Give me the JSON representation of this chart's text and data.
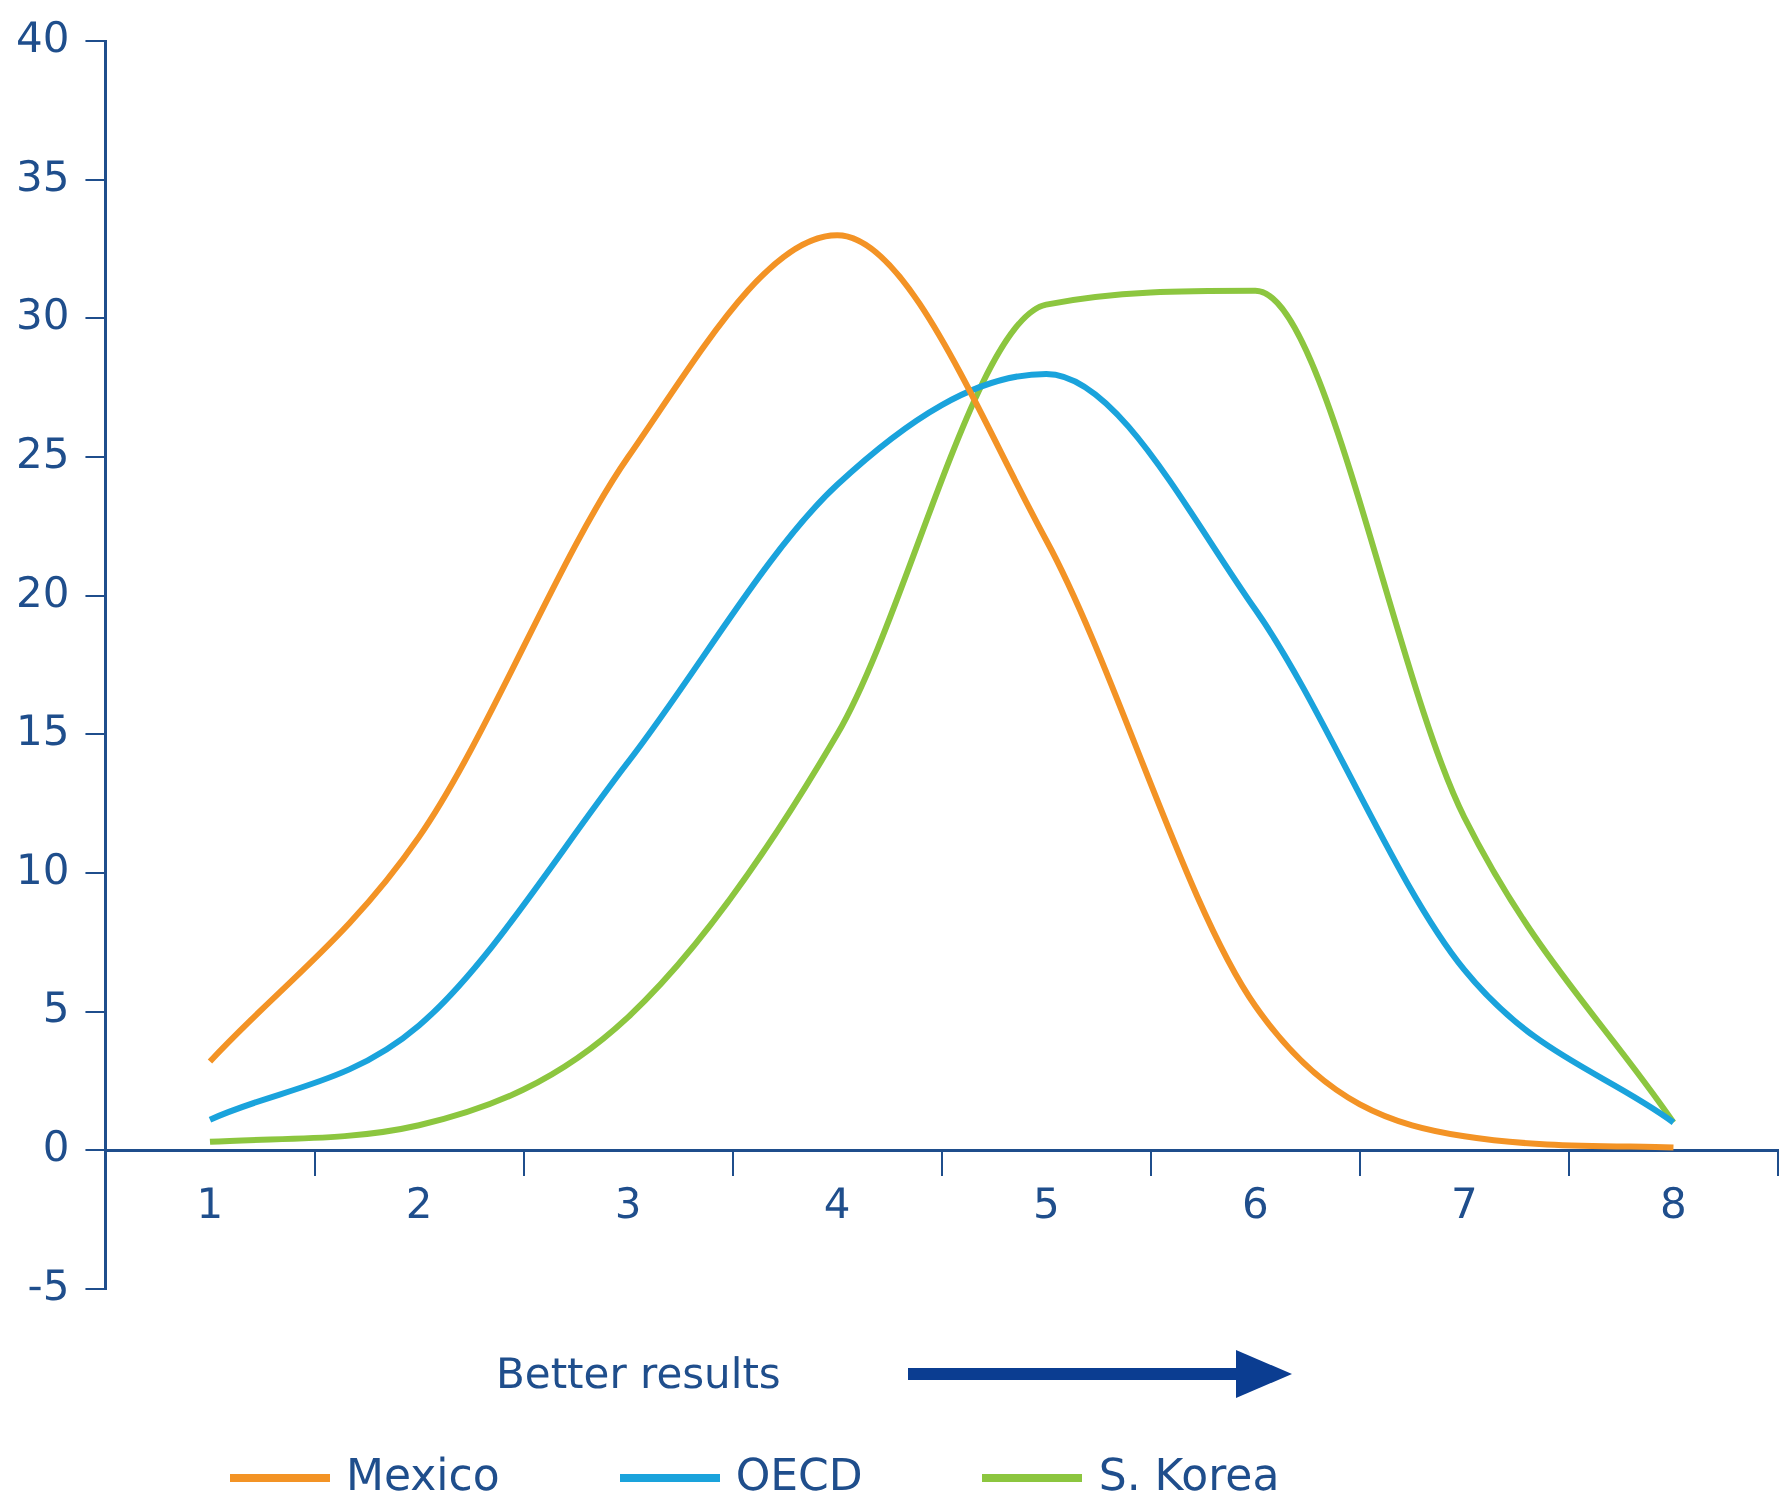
{
  "chart_data": {
    "type": "line",
    "categories": [
      "1",
      "2",
      "3",
      "4",
      "5",
      "6",
      "7",
      "8"
    ],
    "series": [
      {
        "name": "Mexico",
        "color": "#f39325",
        "values": [
          3.2,
          11.3,
          25,
          33,
          22,
          5.2,
          0.5,
          0.1
        ]
      },
      {
        "name": "OECD",
        "color": "#1aa3dc",
        "values": [
          1.1,
          4.5,
          14,
          24,
          28,
          19.5,
          6.5,
          1
        ]
      },
      {
        "name": "S. Korea",
        "color": "#8cc63f",
        "values": [
          0.3,
          0.9,
          4.8,
          15,
          30.5,
          31,
          12,
          1
        ]
      }
    ],
    "ylim": [
      -5,
      40
    ],
    "yticks": [
      -5,
      0,
      5,
      10,
      15,
      20,
      25,
      30,
      35,
      40
    ],
    "grid": false,
    "legend": "bottom",
    "marker": "none",
    "line_style": "solid",
    "annotations": [
      "Better results"
    ]
  }
}
